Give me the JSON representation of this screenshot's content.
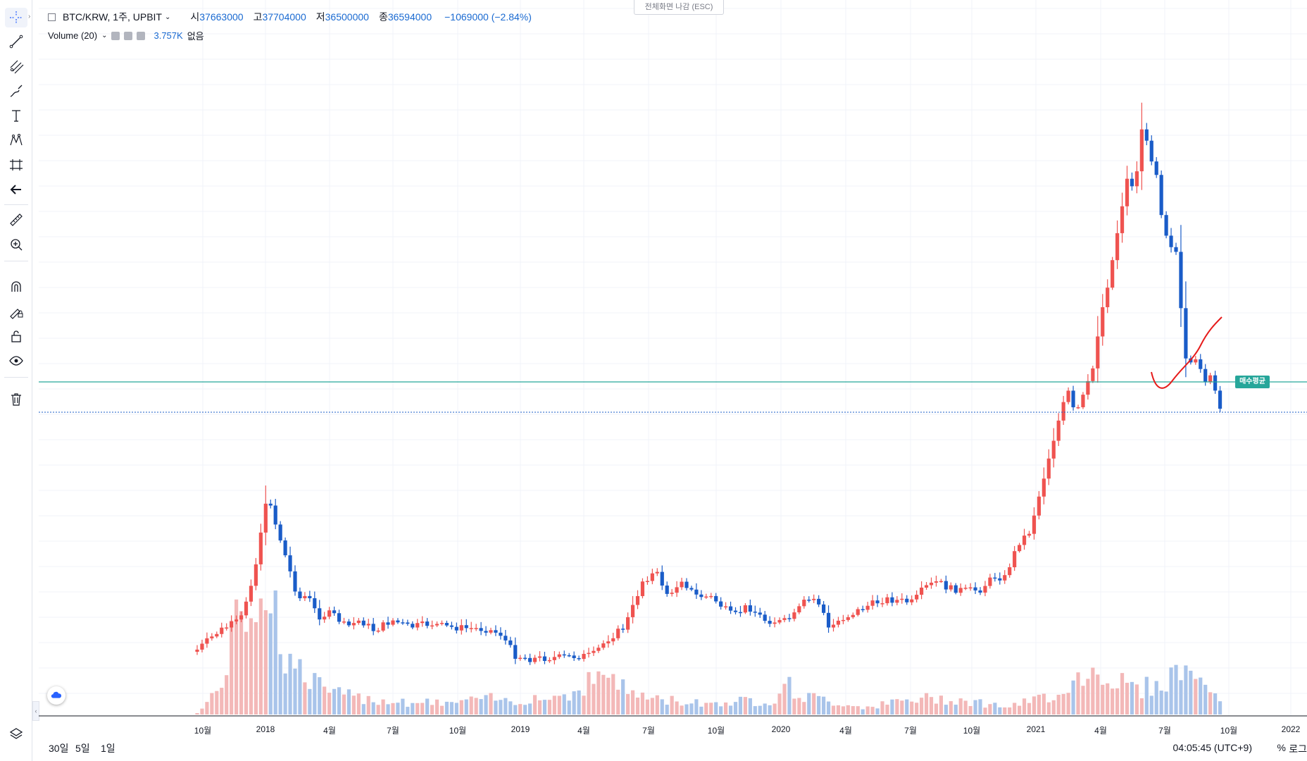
{
  "header": {
    "symbol": "BTC/KRW, 1주, UPBIT",
    "open_label": "시",
    "open": "37663000",
    "high_label": "고",
    "high": "37704000",
    "low_label": "저",
    "low": "36500000",
    "close_label": "종",
    "close": "36594000",
    "change": "−1069000 (−2.84%)"
  },
  "volume_legend": {
    "label": "Volume (20)",
    "value": "3.757K",
    "note": "없음"
  },
  "fullscreen_exit": "전체화면 나감 (ESC)",
  "price_lines": {
    "buy_avg_label": "매수평균"
  },
  "colors": {
    "up": "#ef5350",
    "down": "#1a5cc8",
    "up_vol": "#f3b8b8",
    "down_vol": "#a9c4ea",
    "buy_line": "#26a69a",
    "price_line": "#1a5cc8"
  },
  "toolbar": {
    "icons": [
      "crosshair-icon",
      "trend-line-icon",
      "pitchfork-icon",
      "brush-icon",
      "text-icon",
      "pattern-icon",
      "prediction-icon",
      "back-arrow-icon",
      "ruler-icon",
      "zoom-in-icon",
      "magnet-icon",
      "lock-drawings-icon",
      "unlock-icon",
      "eye-icon",
      "trash-icon"
    ],
    "layers_icon": "layers-icon"
  },
  "x_axis": {
    "labels": [
      "10월",
      "2018",
      "4월",
      "7월",
      "10월",
      "2019",
      "4월",
      "7월",
      "10월",
      "2020",
      "4월",
      "7월",
      "10월",
      "2021",
      "4월",
      "7월",
      "10월",
      "2022"
    ]
  },
  "bottom_bar": {
    "ranges": [
      "30일",
      "5일",
      "1일"
    ],
    "clock": "04:05:45 (UTC+9)",
    "percent": "%",
    "log": "로그"
  }
}
